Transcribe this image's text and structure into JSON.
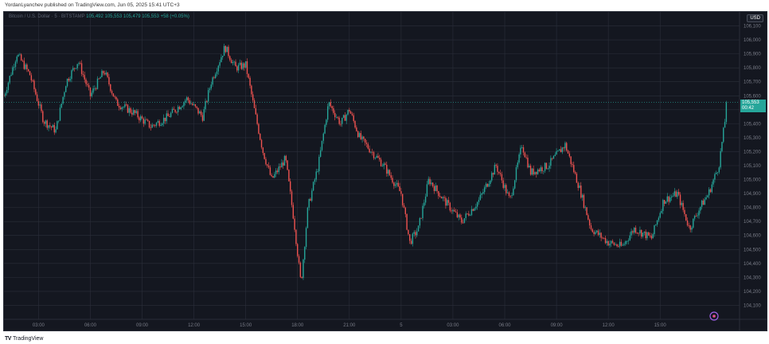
{
  "publisher_line": "YordanLyanchev published on TradingView.com, Jun 05, 2025 15:41 UTC+3",
  "footer_brand": "TradingView",
  "footer_logo": "TV",
  "legend": {
    "symbol": "Bitcoin / U.S. Dollar · 5 · BITSTAMP",
    "ohlc": "105,492  105,553  105,479  105,553  +58 (+0.05%)"
  },
  "currency": "USD",
  "price_tag": {
    "price": "105,553",
    "countdown": "00:42"
  },
  "colors": {
    "background": "#141720",
    "grid": "#2b2f3a",
    "up": "#26a69a",
    "down": "#ef5350",
    "text": "#787b86"
  },
  "chart_data": {
    "type": "candlestick",
    "title": "",
    "xlabel": "",
    "ylabel": "",
    "ylim": [
      104000,
      106200
    ],
    "y_ticks": [
      "104,100",
      "104,200",
      "104,300",
      "104,400",
      "104,500",
      "104,600",
      "104,700",
      "104,800",
      "104,900",
      "105,000",
      "105,100",
      "105,200",
      "105,300",
      "105,400",
      "105,500",
      "105,600",
      "105,700",
      "105,800",
      "105,900",
      "106,000",
      "106,100"
    ],
    "x_ticks": [
      "03:00",
      "06:00",
      "09:00",
      "12:00",
      "15:00",
      "18:00",
      "21:00",
      "5",
      "03:00",
      "06:00",
      "09:00",
      "12:00",
      "15:00"
    ],
    "last_price": 105553,
    "price_path": [
      {
        "t": 0,
        "p": 105600
      },
      {
        "t": 0.75,
        "p": 105900
      },
      {
        "t": 1.5,
        "p": 105750
      },
      {
        "t": 2.3,
        "p": 105420
      },
      {
        "t": 3.0,
        "p": 105350
      },
      {
        "t": 3.6,
        "p": 105700
      },
      {
        "t": 4.3,
        "p": 105850
      },
      {
        "t": 5.0,
        "p": 105600
      },
      {
        "t": 5.8,
        "p": 105780
      },
      {
        "t": 6.5,
        "p": 105550
      },
      {
        "t": 7.5,
        "p": 105480
      },
      {
        "t": 8.5,
        "p": 105380
      },
      {
        "t": 9.5,
        "p": 105450
      },
      {
        "t": 10.6,
        "p": 105580
      },
      {
        "t": 11.5,
        "p": 105450
      },
      {
        "t": 12.0,
        "p": 105700
      },
      {
        "t": 12.8,
        "p": 105950
      },
      {
        "t": 13.4,
        "p": 105800
      },
      {
        "t": 14.0,
        "p": 105820
      },
      {
        "t": 14.5,
        "p": 105500
      },
      {
        "t": 15.0,
        "p": 105200
      },
      {
        "t": 15.5,
        "p": 105000
      },
      {
        "t": 16.3,
        "p": 105150
      },
      {
        "t": 16.8,
        "p": 104700
      },
      {
        "t": 17.2,
        "p": 104250
      },
      {
        "t": 17.6,
        "p": 104800
      },
      {
        "t": 18.2,
        "p": 105100
      },
      {
        "t": 18.8,
        "p": 105550
      },
      {
        "t": 19.5,
        "p": 105400
      },
      {
        "t": 20.0,
        "p": 105500
      },
      {
        "t": 20.6,
        "p": 105300
      },
      {
        "t": 21.3,
        "p": 105200
      },
      {
        "t": 22.0,
        "p": 105100
      },
      {
        "t": 23.0,
        "p": 104900
      },
      {
        "t": 23.5,
        "p": 104550
      },
      {
        "t": 24.0,
        "p": 104650
      },
      {
        "t": 24.6,
        "p": 105000
      },
      {
        "t": 25.5,
        "p": 104850
      },
      {
        "t": 26.5,
        "p": 104700
      },
      {
        "t": 27.5,
        "p": 104850
      },
      {
        "t": 28.5,
        "p": 105100
      },
      {
        "t": 29.3,
        "p": 104850
      },
      {
        "t": 30.0,
        "p": 105250
      },
      {
        "t": 30.5,
        "p": 105050
      },
      {
        "t": 31.5,
        "p": 105100
      },
      {
        "t": 32.5,
        "p": 105250
      },
      {
        "t": 33.3,
        "p": 104950
      },
      {
        "t": 34.0,
        "p": 104650
      },
      {
        "t": 35.0,
        "p": 104550
      },
      {
        "t": 35.8,
        "p": 104520
      },
      {
        "t": 36.5,
        "p": 104650
      },
      {
        "t": 37.5,
        "p": 104580
      },
      {
        "t": 38.2,
        "p": 104850
      },
      {
        "t": 39.0,
        "p": 104900
      },
      {
        "t": 39.7,
        "p": 104650
      },
      {
        "t": 40.3,
        "p": 104800
      },
      {
        "t": 40.8,
        "p": 104900
      },
      {
        "t": 41.4,
        "p": 105100
      },
      {
        "t": 41.9,
        "p": 105553
      }
    ]
  }
}
